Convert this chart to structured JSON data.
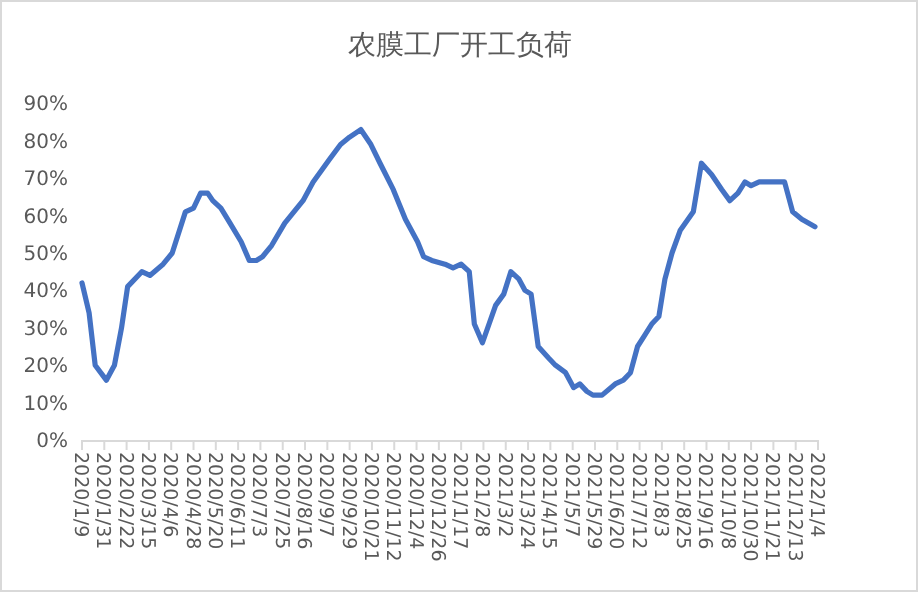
{
  "chart_data": {
    "type": "line",
    "title": "农膜工厂开工负荷",
    "series": [
      {
        "color": "#4472c4",
        "x": [
          "2020-01-09",
          "2020-01-16",
          "2020-01-22",
          "2020-02-02",
          "2020-02-10",
          "2020-02-17",
          "2020-02-23",
          "2020-03-08",
          "2020-03-16",
          "2020-03-29",
          "2020-04-07",
          "2020-04-20",
          "2020-04-28",
          "2020-05-05",
          "2020-05-12",
          "2020-05-17",
          "2020-05-25",
          "2020-06-03",
          "2020-06-14",
          "2020-06-22",
          "2020-06-29",
          "2020-07-05",
          "2020-07-14",
          "2020-07-27",
          "2020-08-14",
          "2020-08-24",
          "2020-09-09",
          "2020-09-20",
          "2020-09-29",
          "2020-10-10",
          "2020-10-20",
          "2020-10-29",
          "2020-11-11",
          "2020-11-23",
          "2020-12-05",
          "2020-12-11",
          "2020-12-19",
          "2021-01-01",
          "2021-01-09",
          "2021-01-17",
          "2021-01-25",
          "2021-01-30",
          "2021-02-07",
          "2021-02-20",
          "2021-02-28",
          "2021-03-07",
          "2021-03-15",
          "2021-03-21",
          "2021-03-27",
          "2021-04-03",
          "2021-04-13",
          "2021-04-20",
          "2021-04-30",
          "2021-05-08",
          "2021-05-14",
          "2021-05-21",
          "2021-05-27",
          "2021-06-05",
          "2021-06-18",
          "2021-06-26",
          "2021-07-03",
          "2021-07-10",
          "2021-07-17",
          "2021-07-24",
          "2021-07-31",
          "2021-08-06",
          "2021-08-13",
          "2021-08-21",
          "2021-09-03",
          "2021-09-11",
          "2021-09-21",
          "2021-10-01",
          "2021-10-09",
          "2021-10-17",
          "2021-10-24",
          "2021-10-30",
          "2021-11-07",
          "2021-12-02",
          "2021-12-10",
          "2021-12-19",
          "2022-01-01"
        ],
        "values": [
          42,
          34,
          20,
          16,
          20,
          30,
          41,
          45,
          44,
          47,
          50,
          61,
          62,
          66,
          66,
          64,
          62,
          58,
          53,
          48,
          48,
          49,
          52,
          58,
          64,
          69,
          75,
          79,
          81,
          83,
          79,
          74,
          67,
          59,
          53,
          49,
          48,
          47,
          46,
          47,
          45,
          31,
          26,
          36,
          39,
          45,
          43,
          40,
          39,
          25,
          22,
          20,
          18,
          14,
          15,
          13,
          12,
          12,
          15,
          16,
          18,
          25,
          28,
          31,
          33,
          43,
          50,
          56,
          61,
          74,
          71,
          67,
          64,
          66,
          69,
          68,
          69,
          69,
          61,
          59,
          57
        ]
      }
    ],
    "xlim": [
      "2020-01-09",
      "2022-01-04"
    ],
    "xticks": [
      {
        "value": "2020-01-09",
        "label": "2020/1/9"
      },
      {
        "value": "2020-01-31",
        "label": "2020/1/31"
      },
      {
        "value": "2020-02-22",
        "label": "2020/2/22"
      },
      {
        "value": "2020-03-15",
        "label": "2020/3/15"
      },
      {
        "value": "2020-04-06",
        "label": "2020/4/6"
      },
      {
        "value": "2020-04-28",
        "label": "2020/4/28"
      },
      {
        "value": "2020-05-20",
        "label": "2020/5/20"
      },
      {
        "value": "2020-06-11",
        "label": "2020/6/11"
      },
      {
        "value": "2020-07-03",
        "label": "2020/7/3"
      },
      {
        "value": "2020-07-25",
        "label": "2020/7/25"
      },
      {
        "value": "2020-08-16",
        "label": "2020/8/16"
      },
      {
        "value": "2020-09-07",
        "label": "2020/9/7"
      },
      {
        "value": "2020-09-29",
        "label": "2020/9/29"
      },
      {
        "value": "2020-10-21",
        "label": "2020/10/21"
      },
      {
        "value": "2020-11-12",
        "label": "2020/11/12"
      },
      {
        "value": "2020-12-04",
        "label": "2020/12/4"
      },
      {
        "value": "2020-12-26",
        "label": "2020/12/26"
      },
      {
        "value": "2021-01-17",
        "label": "2021/1/17"
      },
      {
        "value": "2021-02-08",
        "label": "2021/2/8"
      },
      {
        "value": "2021-03-02",
        "label": "2021/3/2"
      },
      {
        "value": "2021-03-24",
        "label": "2021/3/24"
      },
      {
        "value": "2021-04-15",
        "label": "2021/4/15"
      },
      {
        "value": "2021-05-07",
        "label": "2021/5/7"
      },
      {
        "value": "2021-05-29",
        "label": "2021/5/29"
      },
      {
        "value": "2021-06-20",
        "label": "2021/6/20"
      },
      {
        "value": "2021-07-12",
        "label": "2021/7/12"
      },
      {
        "value": "2021-08-03",
        "label": "2021/8/3"
      },
      {
        "value": "2021-08-25",
        "label": "2021/8/25"
      },
      {
        "value": "2021-09-16",
        "label": "2021/9/16"
      },
      {
        "value": "2021-10-08",
        "label": "2021/10/8"
      },
      {
        "value": "2021-10-30",
        "label": "2021/10/30"
      },
      {
        "value": "2021-11-21",
        "label": "2021/11/21"
      },
      {
        "value": "2021-12-13",
        "label": "2021/12/13"
      },
      {
        "value": "2022-01-04",
        "label": "2022/1/4"
      }
    ],
    "ylim": [
      0,
      90
    ],
    "yticks": [
      {
        "value": 0,
        "label": "0%"
      },
      {
        "value": 10,
        "label": "10%"
      },
      {
        "value": 20,
        "label": "20%"
      },
      {
        "value": 30,
        "label": "30%"
      },
      {
        "value": 40,
        "label": "40%"
      },
      {
        "value": 50,
        "label": "50%"
      },
      {
        "value": 60,
        "label": "60%"
      },
      {
        "value": 70,
        "label": "70%"
      },
      {
        "value": 80,
        "label": "80%"
      },
      {
        "value": 90,
        "label": "90%"
      }
    ],
    "grid": false,
    "marker": "none",
    "line_style": "solid"
  }
}
